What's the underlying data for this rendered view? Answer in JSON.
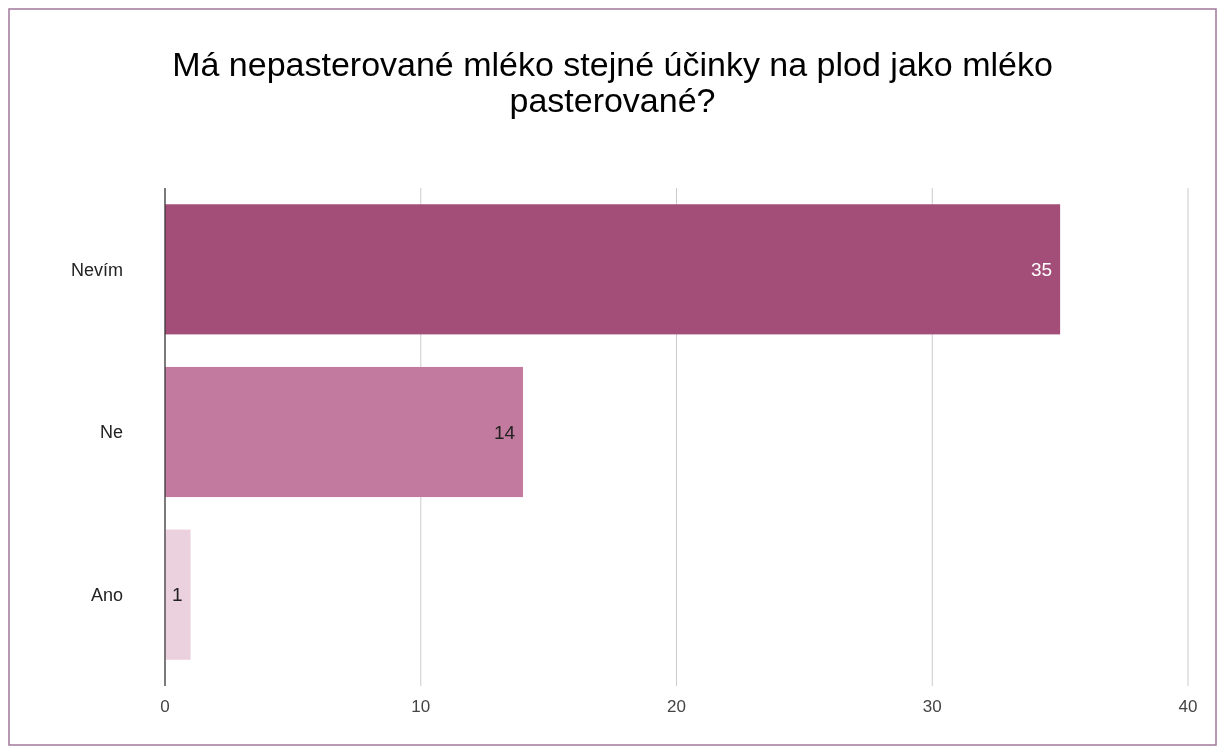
{
  "chart_data": {
    "type": "bar",
    "orientation": "horizontal",
    "title": "Má nepasterované mléko stejné účinky na plod jako mléko pasterované?",
    "categories": [
      "Nevím",
      "Ne",
      "Ano"
    ],
    "values": [
      35,
      14,
      1
    ],
    "colors": [
      "#a34e78",
      "#c27a9f",
      "#ebd0dd"
    ],
    "xlim": [
      0,
      40
    ],
    "xticks": [
      0,
      10,
      20,
      30,
      40
    ],
    "grid": "x",
    "data_labels": true
  }
}
